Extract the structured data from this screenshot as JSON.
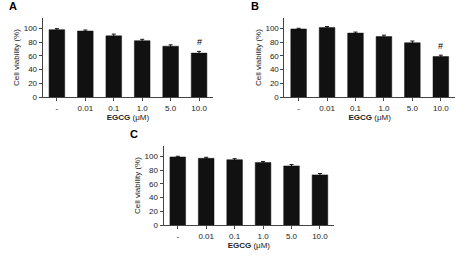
{
  "chart_data": [
    {
      "type": "bar",
      "title": "A",
      "categories": [
        "-",
        "0.01",
        "0.1",
        "1.0",
        "5.0",
        "10.0"
      ],
      "values": [
        98,
        96,
        89,
        82,
        74,
        64
      ],
      "errors": [
        1.5,
        1.5,
        2.5,
        2.0,
        2.0,
        2.5
      ],
      "color": "#111111",
      "xlabel": "EGCG (μM)",
      "ylabel": "Cell viability (%)",
      "ylim": [
        0,
        115
      ],
      "yticks": [
        0,
        20,
        40,
        60,
        80,
        100
      ],
      "grid": false,
      "annotations": [
        {
          "text": "#",
          "x": "10.0"
        }
      ]
    },
    {
      "type": "bar",
      "title": "B",
      "categories": [
        "-",
        "0.01",
        "0.1",
        "1.0",
        "5.0",
        "10.0"
      ],
      "values": [
        99,
        101,
        93,
        88,
        79,
        59
      ],
      "errors": [
        1.0,
        1.5,
        1.5,
        2.0,
        2.5,
        2.0
      ],
      "color": "#111111",
      "xlabel": "EGCG (μM)",
      "ylabel": "Cell viability (%)",
      "ylim": [
        0,
        115
      ],
      "yticks": [
        0,
        20,
        40,
        60,
        80,
        100
      ],
      "grid": false,
      "annotations": [
        {
          "text": "#",
          "x": "10.0"
        }
      ]
    },
    {
      "type": "bar",
      "title": "C",
      "categories": [
        "-",
        "0.01",
        "0.1",
        "1.0",
        "5.0",
        "10.0"
      ],
      "values": [
        99,
        97,
        95,
        91,
        86,
        73
      ],
      "errors": [
        1.0,
        1.5,
        1.5,
        1.5,
        2.0,
        2.0
      ],
      "color": "#111111",
      "xlabel": "EGCG (μM)",
      "ylabel": "Cell viability (%)",
      "ylim": [
        0,
        115
      ],
      "yticks": [
        0,
        20,
        40,
        60,
        80,
        100
      ],
      "grid": false
    }
  ]
}
